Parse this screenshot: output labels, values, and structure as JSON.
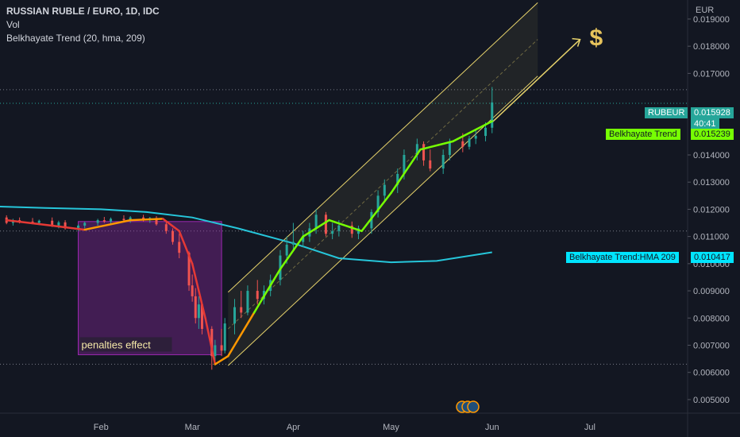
{
  "header": {
    "symbol": "RUSSIAN RUBLE / EURO, 1D, IDC",
    "volume": "Vol",
    "indicator": "Belkhayate Trend (20, hma, 209)"
  },
  "axis": {
    "currency": "EUR",
    "y_ticks": [
      "0.019000",
      "0.018000",
      "0.017000",
      "0.014000",
      "0.013000",
      "0.012000",
      "0.011000",
      "0.010000",
      "0.009000",
      "0.008000",
      "0.007000",
      "0.006000",
      "0.005000"
    ],
    "x_ticks": [
      "Feb",
      "Mar",
      "Apr",
      "May",
      "Jun",
      "Jul"
    ]
  },
  "price_tags": {
    "symbol_label": "RUBEUR",
    "price": "0.015928",
    "countdown": "40:41",
    "trend_label": "Belkhayate Trend",
    "trend_value": "0.015239",
    "hma_label": "Belkhayate Trend:HMA 209",
    "hma_value": "0.010417"
  },
  "annotations": {
    "box_label": "penalties effect",
    "dollar": "$"
  },
  "colors": {
    "background": "#131722",
    "up": "#26a69a",
    "down": "#ef5350",
    "hma": "#26c6da",
    "trend_lime": "#76ff03",
    "channel": "#e6d26b",
    "box": "#9c27b0",
    "tag_teal": "#26a69a",
    "tag_lime": "#76ff03",
    "tag_cyan": "#00e5ff"
  },
  "chart_data": {
    "type": "candlestick",
    "title": "RUSSIAN RUBLE / EURO, 1D, IDC",
    "x_range": [
      "2022-01-01",
      "2022-07-31"
    ],
    "ylim": [
      0.0045,
      0.0197
    ],
    "y_ticks": [
      0.019,
      0.018,
      0.017,
      0.014,
      0.013,
      0.012,
      0.011,
      0.01,
      0.009,
      0.008,
      0.007,
      0.006,
      0.005
    ],
    "last_price": 0.015928,
    "trend_value": 0.015239,
    "hma_value": 0.010417,
    "candles": [
      {
        "date": "2022-01-03",
        "o": 0.0117,
        "h": 0.01178,
        "l": 0.01145,
        "c": 0.0115
      },
      {
        "date": "2022-01-05",
        "o": 0.0115,
        "h": 0.01165,
        "l": 0.0114,
        "c": 0.0116
      },
      {
        "date": "2022-01-07",
        "o": 0.0116,
        "h": 0.0117,
        "l": 0.01148,
        "c": 0.01155
      },
      {
        "date": "2022-01-11",
        "o": 0.01155,
        "h": 0.01168,
        "l": 0.01145,
        "c": 0.0115
      },
      {
        "date": "2022-01-13",
        "o": 0.0115,
        "h": 0.01162,
        "l": 0.01142,
        "c": 0.01158
      },
      {
        "date": "2022-01-17",
        "o": 0.01158,
        "h": 0.0117,
        "l": 0.01135,
        "c": 0.0114
      },
      {
        "date": "2022-01-19",
        "o": 0.0114,
        "h": 0.01158,
        "l": 0.0113,
        "c": 0.01152
      },
      {
        "date": "2022-01-21",
        "o": 0.01152,
        "h": 0.0116,
        "l": 0.01125,
        "c": 0.0113
      },
      {
        "date": "2022-01-25",
        "o": 0.0113,
        "h": 0.01145,
        "l": 0.0112,
        "c": 0.0114
      },
      {
        "date": "2022-01-27",
        "o": 0.0114,
        "h": 0.01155,
        "l": 0.0113,
        "c": 0.0115
      },
      {
        "date": "2022-01-31",
        "o": 0.0115,
        "h": 0.01165,
        "l": 0.0114,
        "c": 0.0116
      },
      {
        "date": "2022-02-02",
        "o": 0.0116,
        "h": 0.01172,
        "l": 0.0115,
        "c": 0.01155
      },
      {
        "date": "2022-02-04",
        "o": 0.01155,
        "h": 0.0117,
        "l": 0.01148,
        "c": 0.01165
      },
      {
        "date": "2022-02-08",
        "o": 0.01165,
        "h": 0.01178,
        "l": 0.01155,
        "c": 0.0116
      },
      {
        "date": "2022-02-10",
        "o": 0.0116,
        "h": 0.01175,
        "l": 0.0115,
        "c": 0.0117
      },
      {
        "date": "2022-02-14",
        "o": 0.0117,
        "h": 0.0118,
        "l": 0.01155,
        "c": 0.0116
      },
      {
        "date": "2022-02-16",
        "o": 0.0116,
        "h": 0.01172,
        "l": 0.0115,
        "c": 0.01168
      },
      {
        "date": "2022-02-18",
        "o": 0.01168,
        "h": 0.01175,
        "l": 0.0114,
        "c": 0.01145
      },
      {
        "date": "2022-02-21",
        "o": 0.01145,
        "h": 0.01155,
        "l": 0.0111,
        "c": 0.0112
      },
      {
        "date": "2022-02-23",
        "o": 0.0112,
        "h": 0.0113,
        "l": 0.0107,
        "c": 0.0108
      },
      {
        "date": "2022-02-25",
        "o": 0.0108,
        "h": 0.0111,
        "l": 0.0102,
        "c": 0.0104
      },
      {
        "date": "2022-02-28",
        "o": 0.0104,
        "h": 0.01045,
        "l": 0.009,
        "c": 0.0092
      },
      {
        "date": "2022-03-01",
        "o": 0.0092,
        "h": 0.0096,
        "l": 0.0086,
        "c": 0.0088
      },
      {
        "date": "2022-03-02",
        "o": 0.0088,
        "h": 0.0091,
        "l": 0.0078,
        "c": 0.008
      },
      {
        "date": "2022-03-03",
        "o": 0.008,
        "h": 0.0088,
        "l": 0.0076,
        "c": 0.0085
      },
      {
        "date": "2022-03-04",
        "o": 0.0085,
        "h": 0.0086,
        "l": 0.0074,
        "c": 0.0076
      },
      {
        "date": "2022-03-07",
        "o": 0.0076,
        "h": 0.0077,
        "l": 0.0061,
        "c": 0.0066
      },
      {
        "date": "2022-03-08",
        "o": 0.0066,
        "h": 0.0072,
        "l": 0.0064,
        "c": 0.007
      },
      {
        "date": "2022-03-10",
        "o": 0.007,
        "h": 0.0076,
        "l": 0.0066,
        "c": 0.0068
      },
      {
        "date": "2022-03-11",
        "o": 0.0068,
        "h": 0.008,
        "l": 0.0067,
        "c": 0.0078
      },
      {
        "date": "2022-03-14",
        "o": 0.0078,
        "h": 0.0087,
        "l": 0.0074,
        "c": 0.0084
      },
      {
        "date": "2022-03-16",
        "o": 0.0084,
        "h": 0.009,
        "l": 0.008,
        "c": 0.0082
      },
      {
        "date": "2022-03-18",
        "o": 0.0082,
        "h": 0.0092,
        "l": 0.0081,
        "c": 0.009
      },
      {
        "date": "2022-03-21",
        "o": 0.009,
        "h": 0.0094,
        "l": 0.0085,
        "c": 0.0087
      },
      {
        "date": "2022-03-23",
        "o": 0.0087,
        "h": 0.0092,
        "l": 0.0085,
        "c": 0.009
      },
      {
        "date": "2022-03-25",
        "o": 0.009,
        "h": 0.0096,
        "l": 0.0088,
        "c": 0.0094
      },
      {
        "date": "2022-03-28",
        "o": 0.0094,
        "h": 0.0105,
        "l": 0.0092,
        "c": 0.0103
      },
      {
        "date": "2022-03-30",
        "o": 0.0103,
        "h": 0.011,
        "l": 0.01,
        "c": 0.0107
      },
      {
        "date": "2022-04-01",
        "o": 0.0107,
        "h": 0.0115,
        "l": 0.0105,
        "c": 0.0108
      },
      {
        "date": "2022-04-04",
        "o": 0.0108,
        "h": 0.0112,
        "l": 0.0106,
        "c": 0.011
      },
      {
        "date": "2022-04-06",
        "o": 0.011,
        "h": 0.0115,
        "l": 0.0108,
        "c": 0.0113
      },
      {
        "date": "2022-04-08",
        "o": 0.0113,
        "h": 0.012,
        "l": 0.0111,
        "c": 0.0118
      },
      {
        "date": "2022-04-11",
        "o": 0.0118,
        "h": 0.0119,
        "l": 0.011,
        "c": 0.0111
      },
      {
        "date": "2022-04-13",
        "o": 0.0111,
        "h": 0.0115,
        "l": 0.0109,
        "c": 0.0112
      },
      {
        "date": "2022-04-15",
        "o": 0.0112,
        "h": 0.0116,
        "l": 0.011,
        "c": 0.0114
      },
      {
        "date": "2022-04-19",
        "o": 0.0114,
        "h": 0.01155,
        "l": 0.01095,
        "c": 0.0111
      },
      {
        "date": "2022-04-21",
        "o": 0.0111,
        "h": 0.0114,
        "l": 0.0109,
        "c": 0.0113
      },
      {
        "date": "2022-04-25",
        "o": 0.0113,
        "h": 0.012,
        "l": 0.0111,
        "c": 0.0119
      },
      {
        "date": "2022-04-27",
        "o": 0.0119,
        "h": 0.0127,
        "l": 0.0117,
        "c": 0.0125
      },
      {
        "date": "2022-04-29",
        "o": 0.0125,
        "h": 0.0131,
        "l": 0.0123,
        "c": 0.0129
      },
      {
        "date": "2022-05-03",
        "o": 0.0129,
        "h": 0.0135,
        "l": 0.0126,
        "c": 0.0133
      },
      {
        "date": "2022-05-05",
        "o": 0.0133,
        "h": 0.0142,
        "l": 0.0131,
        "c": 0.014
      },
      {
        "date": "2022-05-09",
        "o": 0.014,
        "h": 0.0146,
        "l": 0.0138,
        "c": 0.0144
      },
      {
        "date": "2022-05-11",
        "o": 0.0144,
        "h": 0.0145,
        "l": 0.0136,
        "c": 0.0138
      },
      {
        "date": "2022-05-13",
        "o": 0.0138,
        "h": 0.0142,
        "l": 0.0134,
        "c": 0.0135
      },
      {
        "date": "2022-05-17",
        "o": 0.0135,
        "h": 0.0142,
        "l": 0.0133,
        "c": 0.014
      },
      {
        "date": "2022-05-19",
        "o": 0.014,
        "h": 0.0146,
        "l": 0.0138,
        "c": 0.0145
      },
      {
        "date": "2022-05-23",
        "o": 0.0145,
        "h": 0.0148,
        "l": 0.0141,
        "c": 0.0143
      },
      {
        "date": "2022-05-25",
        "o": 0.0143,
        "h": 0.0147,
        "l": 0.0142,
        "c": 0.0146
      },
      {
        "date": "2022-05-27",
        "o": 0.0146,
        "h": 0.0149,
        "l": 0.0144,
        "c": 0.0147
      },
      {
        "date": "2022-05-30",
        "o": 0.0147,
        "h": 0.0152,
        "l": 0.0145,
        "c": 0.015
      },
      {
        "date": "2022-06-01",
        "o": 0.015,
        "h": 0.0165,
        "l": 0.0148,
        "c": 0.01593
      }
    ],
    "hma_209": {
      "dates": [
        "2022-01-01",
        "2022-01-15",
        "2022-02-01",
        "2022-02-15",
        "2022-03-01",
        "2022-03-15",
        "2022-04-01",
        "2022-04-15",
        "2022-05-01",
        "2022-05-15",
        "2022-06-01"
      ],
      "values": [
        0.0121,
        0.01205,
        0.012,
        0.0119,
        0.0117,
        0.0113,
        0.01075,
        0.0102,
        0.01005,
        0.0101,
        0.01042
      ]
    },
    "belkhayate_trend": {
      "dates": [
        "2022-01-03",
        "2022-01-17",
        "2022-01-27",
        "2022-02-10",
        "2022-02-20",
        "2022-02-25",
        "2022-03-01",
        "2022-03-05",
        "2022-03-08",
        "2022-03-12",
        "2022-03-20",
        "2022-03-28",
        "2022-04-04",
        "2022-04-12",
        "2022-04-22",
        "2022-05-01",
        "2022-05-10",
        "2022-05-20",
        "2022-06-01"
      ],
      "values": [
        0.0116,
        0.0114,
        0.01125,
        0.0116,
        0.01165,
        0.0112,
        0.01,
        0.008,
        0.0063,
        0.0066,
        0.0082,
        0.0098,
        0.011,
        0.0116,
        0.0112,
        0.0126,
        0.0142,
        0.0145,
        0.01524
      ]
    },
    "channel": {
      "start": "2022-03-12",
      "end": "2022-06-15",
      "mid_start": 0.0076,
      "mid_end": 0.01825,
      "half_width": 0.00135
    },
    "annotation_box": {
      "x_start": "2022-01-25",
      "x_end": "2022-03-10",
      "y_high": 0.01155,
      "y_low": 0.00665,
      "label": "penalties effect"
    },
    "support_lines": [
      0.0112,
      0.0063
    ]
  }
}
